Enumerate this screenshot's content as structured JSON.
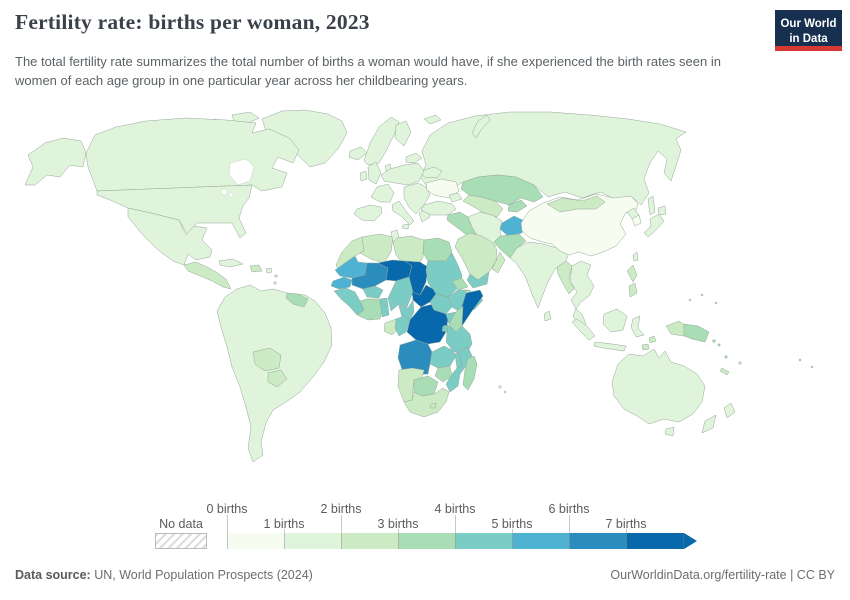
{
  "header": {
    "title": "Fertility rate: births per woman, 2023",
    "subtitle": "The total fertility rate summarizes the total number of births a woman would have, if she experienced the birth rates seen in women of each age group in one particular year across her childbearing years.",
    "logo": {
      "line1": "Our World",
      "line2": "in Data",
      "bg_color": "#17304f",
      "accent_color": "#d73a33"
    }
  },
  "footer": {
    "source_label": "Data source:",
    "source_text": " UN, World Population Prospects (2024)",
    "credit_text": "OurWorldinData.org/fertility-rate | CC BY"
  },
  "chart_data": {
    "type": "choropleth-world-map",
    "title": "Fertility rate: births per woman, 2023",
    "year": 2023,
    "metric": "Total fertility rate (births per woman)",
    "legend": {
      "no_data_label": "No data",
      "bins": [
        "0-1",
        "1-2",
        "2-3",
        "3-4",
        "4-5",
        "5-6",
        "6-7",
        "7+"
      ],
      "tick_labels": [
        "0 births",
        "1 births",
        "2 births",
        "3 births",
        "4 births",
        "5 births",
        "6 births",
        "7 births"
      ],
      "bin_colors": [
        "#f7fcf0",
        "#e0f3db",
        "#ccebc5",
        "#a8ddb5",
        "#7bccc4",
        "#4eb3d3",
        "#2b8cbe",
        "#0868ac"
      ],
      "arrow_color": "#0868ac"
    },
    "regions": {
      "greenland": "1-2",
      "iceland": "1-2",
      "canada-arctic": "1-2",
      "svalbard": "1-2",
      "novaya-zemlya": "1-2",
      "alaska": "1-2",
      "canada": "1-2",
      "usa": "1-2",
      "mexico": "1-2",
      "central-america": "2-3",
      "cuba": "1-2",
      "hispaniola": "2-3",
      "puerto-rico": "1-2",
      "lesser-antilles": "2-3",
      "south-america": "1-2",
      "guyanas": "3-4",
      "bolivia": "2-3",
      "paraguay": "2-3",
      "uk": "1-2",
      "ireland": "1-2",
      "scandinavia": "1-2",
      "finland": "1-2",
      "denmark": "1-2",
      "baltics": "1-2",
      "belarus": "1-2",
      "france": "1-2",
      "germany-poland": "1-2",
      "balkans": "1-2",
      "iberia": "1-2",
      "italy": "1-2",
      "sicily": "1-2",
      "greece": "1-2",
      "ukraine": "0-1",
      "russia": "1-2",
      "sakhalin": "1-2",
      "kazakhstan": "3-4",
      "uzbekistan-turkmenistan": "2-3",
      "kyrgyzstan-tajikistan": "3-4",
      "caucasus": "1-2",
      "turkey": "1-2",
      "iraq-syria": "3-4",
      "iran": "1-2",
      "afghanistan": "5-6",
      "pakistan": "3-4",
      "saudi-arabia": "2-3",
      "yemen": "4-5",
      "oman": "2-3",
      "india": "1-2",
      "sri-lanka": "1-2",
      "nepal-dot": "1-2",
      "china": "0-1",
      "mongolia": "2-3",
      "north-korea": "1-2",
      "south-korea": "0-1",
      "japan": "1-2",
      "taiwan": "1-2",
      "myanmar": "2-3",
      "indochina": "1-2",
      "malaysia": "1-2",
      "philippines": "2-3",
      "sumatra": "1-2",
      "borneo": "1-2",
      "java": "1-2",
      "sulawesi": "1-2",
      "maluku-timor": "2-3",
      "west-new-guinea": "2-3",
      "papua-new-guinea": "3-4",
      "solomon-islands": "3-4",
      "vanuatu": "3-4",
      "fiji": "2-3",
      "new-caledonia": "2-3",
      "micronesia": "2-3",
      "polynesia": "2-3",
      "australia": "1-2",
      "tasmania": "1-2",
      "new-zealand": "1-2",
      "morocco": "2-3",
      "algeria": "2-3",
      "tunisia": "1-2",
      "libya": "2-3",
      "egypt": "3-4",
      "mauritania": "5-6",
      "senegal": "5-6",
      "guinea-group": "4-5",
      "mali": "6-7",
      "burkina-faso": "4-5",
      "cote-divoire-ghana": "3-4",
      "togo-benin": "4-5",
      "niger": "7+",
      "nigeria": "4-5",
      "chad": "7+",
      "sudan": "4-5",
      "eritrea": "3-4",
      "djibouti": "2-3",
      "ethiopia": "4-5",
      "somalia": "7+",
      "south-sudan": "4-5",
      "uganda": "4-5",
      "kenya": "3-4",
      "rwanda-burundi": "4-5",
      "tanzania": "4-5",
      "central-african-republic": "7+",
      "cameroon": "4-5",
      "gabon": "2-3",
      "congo": "4-5",
      "dr-congo": "7+",
      "angola": "6-7",
      "zambia": "4-5",
      "malawi": "4-5",
      "mozambique": "4-5",
      "zimbabwe": "3-4",
      "namibia": "2-3",
      "botswana": "3-4",
      "south-africa": "2-3",
      "lesotho": "2-3",
      "madagascar": "3-4",
      "comoros": "3-4",
      "mauritius-reunion": "1-2"
    }
  }
}
